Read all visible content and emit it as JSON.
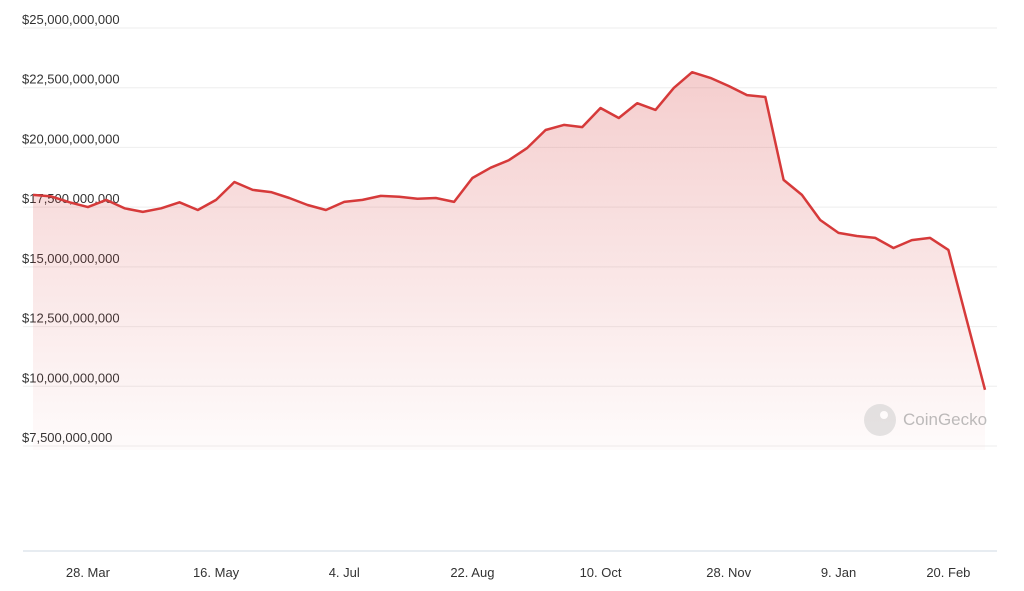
{
  "chart_data": {
    "type": "area",
    "categories": [
      null,
      null,
      null,
      "28. Mar",
      null,
      null,
      null,
      null,
      null,
      null,
      "16. May",
      null,
      null,
      null,
      null,
      null,
      null,
      "4. Jul",
      null,
      null,
      null,
      null,
      null,
      null,
      "22. Aug",
      null,
      null,
      null,
      null,
      null,
      null,
      "10. Oct",
      null,
      null,
      null,
      null,
      null,
      null,
      "28. Nov",
      null,
      null,
      null,
      null,
      null,
      "9. Jan",
      null,
      null,
      null,
      null,
      null,
      "20. Feb",
      null,
      null
    ],
    "series": [
      {
        "color": "#d63a3a",
        "values": [
          17760000000,
          17700000000,
          17450000000,
          17250000000,
          17550000000,
          17200000000,
          17050000000,
          17200000000,
          17450000000,
          17130000000,
          17550000000,
          18300000000,
          17970000000,
          17880000000,
          17630000000,
          17340000000,
          17130000000,
          17470000000,
          17550000000,
          17720000000,
          17680000000,
          17600000000,
          17630000000,
          17470000000,
          18470000000,
          18900000000,
          19220000000,
          19730000000,
          20480000000,
          20690000000,
          20600000000,
          21400000000,
          20980000000,
          21600000000,
          21320000000,
          22240000000,
          22900000000,
          22660000000,
          22320000000,
          21940000000,
          21860000000,
          18390000000,
          17760000000,
          16710000000,
          16170000000,
          16040000000,
          15960000000,
          15540000000,
          15870000000,
          15960000000,
          15460000000,
          12530000000,
          9600000000
        ]
      }
    ],
    "ylim": [
      7500000000,
      25000000000
    ],
    "yticks": [
      {
        "value": 7500000000,
        "label": "$7,500,000,000"
      },
      {
        "value": 10000000000,
        "label": "$10,000,000,000"
      },
      {
        "value": 12500000000,
        "label": "$12,500,000,000"
      },
      {
        "value": 15000000000,
        "label": "$15,000,000,000"
      },
      {
        "value": 17500000000,
        "label": "$17,500,000,000"
      },
      {
        "value": 20000000000,
        "label": "$20,000,000,000"
      },
      {
        "value": 22500000000,
        "label": "$22,500,000,000"
      },
      {
        "value": 25000000000,
        "label": "$25,000,000,000"
      }
    ],
    "grid": true,
    "watermark": "CoinGecko"
  }
}
